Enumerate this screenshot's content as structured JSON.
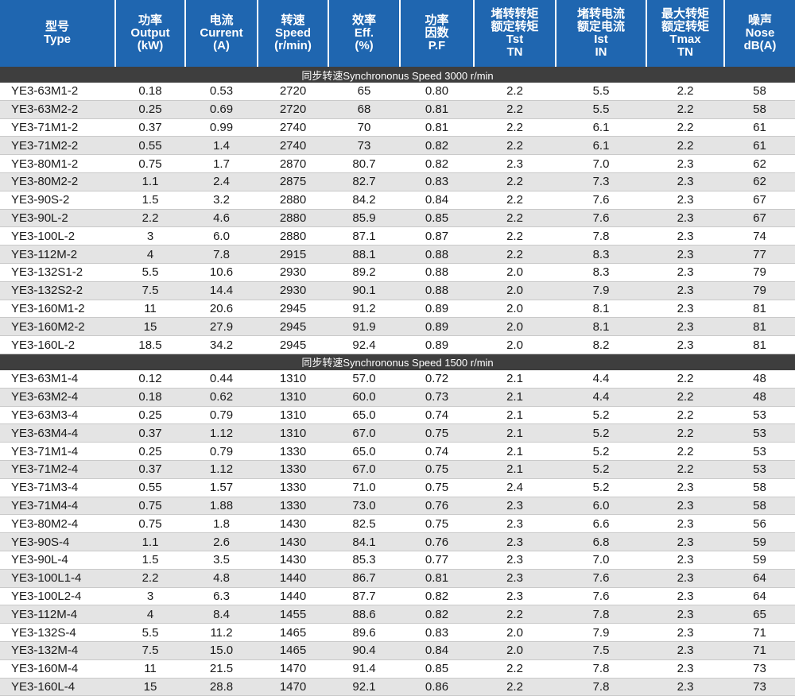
{
  "header": [
    [
      "型号",
      "Type"
    ],
    [
      "功率",
      "Output",
      "(kW)"
    ],
    [
      "电流",
      "Current",
      "(A)"
    ],
    [
      "转速",
      "Speed",
      "(r/min)"
    ],
    [
      "效率",
      "Eff.",
      "(%)"
    ],
    [
      "功率",
      "因数",
      "P.F"
    ],
    [
      "堵转转矩",
      "额定转矩",
      "Tst",
      "TN"
    ],
    [
      "堵转电流",
      "额定电流",
      "Ist",
      "IN"
    ],
    [
      "最大转矩",
      "额定转矩",
      "Tmax",
      "TN"
    ],
    [
      "噪声",
      "Nose",
      "dB(A)"
    ]
  ],
  "sections": [
    {
      "title": "同步转速Synchrononus Speed 3000 r/min",
      "rows": [
        [
          "YE3-63M1-2",
          "0.18",
          "0.53",
          "2720",
          "65",
          "0.80",
          "2.2",
          "5.5",
          "2.2",
          "58"
        ],
        [
          "YE3-63M2-2",
          "0.25",
          "0.69",
          "2720",
          "68",
          "0.81",
          "2.2",
          "5.5",
          "2.2",
          "58"
        ],
        [
          "YE3-71M1-2",
          "0.37",
          "0.99",
          "2740",
          "70",
          "0.81",
          "2.2",
          "6.1",
          "2.2",
          "61"
        ],
        [
          "YE3-71M2-2",
          "0.55",
          "1.4",
          "2740",
          "73",
          "0.82",
          "2.2",
          "6.1",
          "2.2",
          "61"
        ],
        [
          "YE3-80M1-2",
          "0.75",
          "1.7",
          "2870",
          "80.7",
          "0.82",
          "2.3",
          "7.0",
          "2.3",
          "62"
        ],
        [
          "YE3-80M2-2",
          "1.1",
          "2.4",
          "2875",
          "82.7",
          "0.83",
          "2.2",
          "7.3",
          "2.3",
          "62"
        ],
        [
          "YE3-90S-2",
          "1.5",
          "3.2",
          "2880",
          "84.2",
          "0.84",
          "2.2",
          "7.6",
          "2.3",
          "67"
        ],
        [
          "YE3-90L-2",
          "2.2",
          "4.6",
          "2880",
          "85.9",
          "0.85",
          "2.2",
          "7.6",
          "2.3",
          "67"
        ],
        [
          "YE3-100L-2",
          "3",
          "6.0",
          "2880",
          "87.1",
          "0.87",
          "2.2",
          "7.8",
          "2.3",
          "74"
        ],
        [
          "YE3-112M-2",
          "4",
          "7.8",
          "2915",
          "88.1",
          "0.88",
          "2.2",
          "8.3",
          "2.3",
          "77"
        ],
        [
          "YE3-132S1-2",
          "5.5",
          "10.6",
          "2930",
          "89.2",
          "0.88",
          "2.0",
          "8.3",
          "2.3",
          "79"
        ],
        [
          "YE3-132S2-2",
          "7.5",
          "14.4",
          "2930",
          "90.1",
          "0.88",
          "2.0",
          "7.9",
          "2.3",
          "79"
        ],
        [
          "YE3-160M1-2",
          "11",
          "20.6",
          "2945",
          "91.2",
          "0.89",
          "2.0",
          "8.1",
          "2.3",
          "81"
        ],
        [
          "YE3-160M2-2",
          "15",
          "27.9",
          "2945",
          "91.9",
          "0.89",
          "2.0",
          "8.1",
          "2.3",
          "81"
        ],
        [
          "YE3-160L-2",
          "18.5",
          "34.2",
          "2945",
          "92.4",
          "0.89",
          "2.0",
          "8.2",
          "2.3",
          "81"
        ]
      ]
    },
    {
      "title": "同步转速Synchrononus Speed 1500 r/min",
      "rows": [
        [
          "YE3-63M1-4",
          "0.12",
          "0.44",
          "1310",
          "57.0",
          "0.72",
          "2.1",
          "4.4",
          "2.2",
          "48"
        ],
        [
          "YE3-63M2-4",
          "0.18",
          "0.62",
          "1310",
          "60.0",
          "0.73",
          "2.1",
          "4.4",
          "2.2",
          "48"
        ],
        [
          "YE3-63M3-4",
          "0.25",
          "0.79",
          "1310",
          "65.0",
          "0.74",
          "2.1",
          "5.2",
          "2.2",
          "53"
        ],
        [
          "YE3-63M4-4",
          "0.37",
          "1.12",
          "1310",
          "67.0",
          "0.75",
          "2.1",
          "5.2",
          "2.2",
          "53"
        ],
        [
          "YE3-71M1-4",
          "0.25",
          "0.79",
          "1330",
          "65.0",
          "0.74",
          "2.1",
          "5.2",
          "2.2",
          "53"
        ],
        [
          "YE3-71M2-4",
          "0.37",
          "1.12",
          "1330",
          "67.0",
          "0.75",
          "2.1",
          "5.2",
          "2.2",
          "53"
        ],
        [
          "YE3-71M3-4",
          "0.55",
          "1.57",
          "1330",
          "71.0",
          "0.75",
          "2.4",
          "5.2",
          "2.3",
          "58"
        ],
        [
          "YE3-71M4-4",
          "0.75",
          "1.88",
          "1330",
          "73.0",
          "0.76",
          "2.3",
          "6.0",
          "2.3",
          "58"
        ],
        [
          "YE3-80M2-4",
          "0.75",
          "1.8",
          "1430",
          "82.5",
          "0.75",
          "2.3",
          "6.6",
          "2.3",
          "56"
        ],
        [
          "YE3-90S-4",
          "1.1",
          "2.6",
          "1430",
          "84.1",
          "0.76",
          "2.3",
          "6.8",
          "2.3",
          "59"
        ],
        [
          "YE3-90L-4",
          "1.5",
          "3.5",
          "1430",
          "85.3",
          "0.77",
          "2.3",
          "7.0",
          "2.3",
          "59"
        ],
        [
          "YE3-100L1-4",
          "2.2",
          "4.8",
          "1440",
          "86.7",
          "0.81",
          "2.3",
          "7.6",
          "2.3",
          "64"
        ],
        [
          "YE3-100L2-4",
          "3",
          "6.3",
          "1440",
          "87.7",
          "0.82",
          "2.3",
          "7.6",
          "2.3",
          "64"
        ],
        [
          "YE3-112M-4",
          "4",
          "8.4",
          "1455",
          "88.6",
          "0.82",
          "2.2",
          "7.8",
          "2.3",
          "65"
        ],
        [
          "YE3-132S-4",
          "5.5",
          "11.2",
          "1465",
          "89.6",
          "0.83",
          "2.0",
          "7.9",
          "2.3",
          "71"
        ],
        [
          "YE3-132M-4",
          "7.5",
          "15.0",
          "1465",
          "90.4",
          "0.84",
          "2.0",
          "7.5",
          "2.3",
          "71"
        ],
        [
          "YE3-160M-4",
          "11",
          "21.5",
          "1470",
          "91.4",
          "0.85",
          "2.2",
          "7.8",
          "2.3",
          "73"
        ],
        [
          "YE3-160L-4",
          "15",
          "28.8",
          "1470",
          "92.1",
          "0.86",
          "2.2",
          "7.8",
          "2.3",
          "73"
        ]
      ]
    }
  ]
}
